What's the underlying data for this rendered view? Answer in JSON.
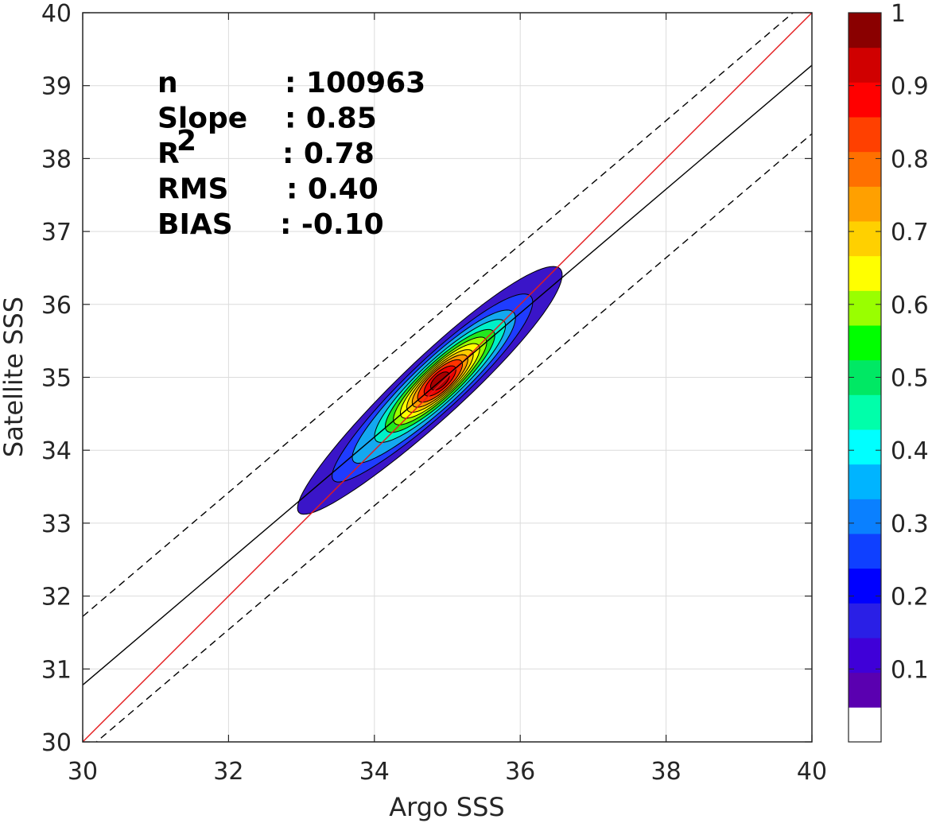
{
  "chart_data": {
    "type": "contour",
    "xlabel": "Argo SSS",
    "ylabel": "Satellite SSS",
    "xlim": [
      30,
      40
    ],
    "ylim": [
      30,
      40
    ],
    "xticks": [
      "30",
      "32",
      "34",
      "36",
      "38",
      "40"
    ],
    "yticks": [
      "30",
      "31",
      "32",
      "33",
      "34",
      "35",
      "36",
      "37",
      "38",
      "39",
      "40"
    ],
    "grid": true,
    "stats": [
      {
        "key": "n",
        "value": ": 100963"
      },
      {
        "key": "Slope",
        "value": ": 0.85"
      },
      {
        "key": "R",
        "sup": "2",
        "value": ": 0.78"
      },
      {
        "key": "RMS",
        "value": ": 0.40"
      },
      {
        "key": "BIAS",
        "value": ": -0.10"
      }
    ],
    "reference_lines": [
      {
        "name": "one-to-one",
        "style": "solid",
        "color": "#e41a1c",
        "points": [
          [
            30,
            30
          ],
          [
            40,
            40
          ]
        ]
      },
      {
        "name": "regression",
        "style": "solid",
        "color": "#000000",
        "points": [
          [
            30,
            30.78
          ],
          [
            40,
            39.28
          ]
        ]
      },
      {
        "name": "upper-bound",
        "style": "dashed",
        "color": "#000000",
        "points": [
          [
            30,
            31.72
          ],
          [
            40,
            40.22
          ]
        ]
      },
      {
        "name": "lower-bound",
        "style": "dashed",
        "color": "#000000",
        "points": [
          [
            30,
            29.84
          ],
          [
            40,
            38.34
          ]
        ]
      }
    ],
    "density": {
      "center": [
        34.9,
        34.95
      ],
      "angle_deg": 43,
      "levels": [
        {
          "level": 0.05,
          "semi_axes": [
            2.45,
            0.42
          ],
          "color": "#3a15c8"
        },
        {
          "level": 0.15,
          "semi_axes": [
            1.85,
            0.36
          ],
          "color": "#1f3cff"
        },
        {
          "level": 0.25,
          "semi_axes": [
            1.5,
            0.32
          ],
          "color": "#14a8f0"
        },
        {
          "level": 0.35,
          "semi_axes": [
            1.2,
            0.28
          ],
          "color": "#00f0c8"
        },
        {
          "level": 0.45,
          "semi_axes": [
            1.0,
            0.25
          ],
          "color": "#22e81e"
        },
        {
          "level": 0.55,
          "semi_axes": [
            0.85,
            0.22
          ],
          "color": "#9cff00"
        },
        {
          "level": 0.6,
          "semi_axes": [
            0.72,
            0.2
          ],
          "color": "#ffff00"
        },
        {
          "level": 0.65,
          "semi_axes": [
            0.6,
            0.18
          ],
          "color": "#ffcc00"
        },
        {
          "level": 0.7,
          "semi_axes": [
            0.5,
            0.16
          ],
          "color": "#ff9900"
        },
        {
          "level": 0.8,
          "semi_axes": [
            0.4,
            0.14
          ],
          "color": "#ff3300"
        },
        {
          "level": 0.9,
          "semi_axes": [
            0.28,
            0.11
          ],
          "color": "#ee0000"
        },
        {
          "level": 0.95,
          "semi_axes": [
            0.16,
            0.08
          ],
          "color": "#a80000"
        }
      ]
    },
    "colorbar": {
      "ticks": [
        "0.1",
        "0.2",
        "0.3",
        "0.4",
        "0.5",
        "0.6",
        "0.7",
        "0.8",
        "0.9",
        "1"
      ],
      "tick_values": [
        0.1,
        0.2,
        0.3,
        0.4,
        0.5,
        0.6,
        0.7,
        0.8,
        0.9,
        1.0
      ],
      "bands": [
        "#ffffff",
        "#5a00b0",
        "#3f00d8",
        "#2a1fe6",
        "#0000ff",
        "#0f40ff",
        "#0a80ff",
        "#00b4ff",
        "#00ffff",
        "#00ffaa",
        "#00e864",
        "#00ff00",
        "#99ff00",
        "#ffff00",
        "#ffd000",
        "#ffa000",
        "#ff7000",
        "#ff4000",
        "#ff0000",
        "#d00000",
        "#8a0000"
      ]
    }
  }
}
